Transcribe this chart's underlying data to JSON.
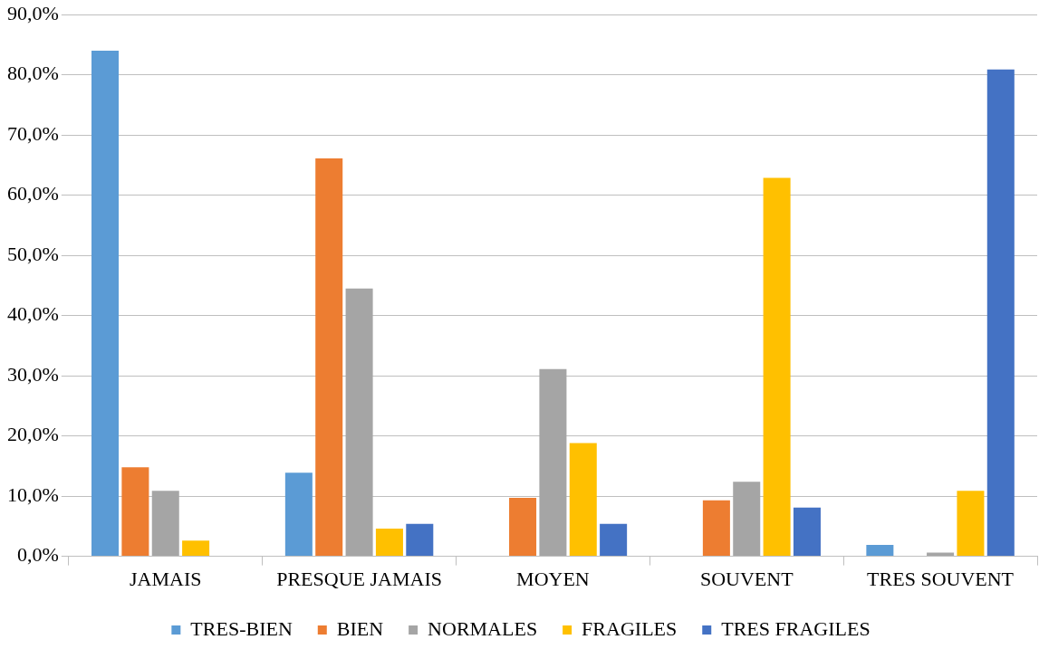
{
  "chart_data": {
    "type": "bar",
    "categories": [
      "JAMAIS",
      "PRESQUE JAMAIS",
      "MOYEN",
      "SOUVENT",
      "TRES SOUVENT"
    ],
    "series": [
      {
        "name": "TRES-BIEN",
        "color": "#5b9bd5",
        "values": [
          84.0,
          13.9,
          0,
          0,
          1.9
        ]
      },
      {
        "name": "BIEN",
        "color": "#ed7d31",
        "values": [
          14.8,
          66.1,
          9.7,
          9.3,
          0
        ]
      },
      {
        "name": "NORMALES",
        "color": "#a5a5a5",
        "values": [
          10.9,
          44.5,
          31.1,
          12.4,
          0.6
        ]
      },
      {
        "name": "FRAGILES",
        "color": "#ffc000",
        "values": [
          2.6,
          4.6,
          18.8,
          62.9,
          10.9
        ]
      },
      {
        "name": "TRES FRAGILES",
        "color": "#4472c4",
        "values": [
          0,
          5.4,
          5.4,
          8.1,
          80.9
        ]
      }
    ],
    "ylim": [
      0,
      90
    ],
    "yticks": [
      {
        "value": 0,
        "label": "0,0%"
      },
      {
        "value": 10,
        "label": "10,0%"
      },
      {
        "value": 20,
        "label": "20,0%"
      },
      {
        "value": 30,
        "label": "30,0%"
      },
      {
        "value": 40,
        "label": "40,0%"
      },
      {
        "value": 50,
        "label": "50,0%"
      },
      {
        "value": 60,
        "label": "60,0%"
      },
      {
        "value": 70,
        "label": "70,0%"
      },
      {
        "value": 80,
        "label": "80,0%"
      },
      {
        "value": 90,
        "label": "90,0%"
      }
    ],
    "grid": "y",
    "legend": "bottom"
  }
}
